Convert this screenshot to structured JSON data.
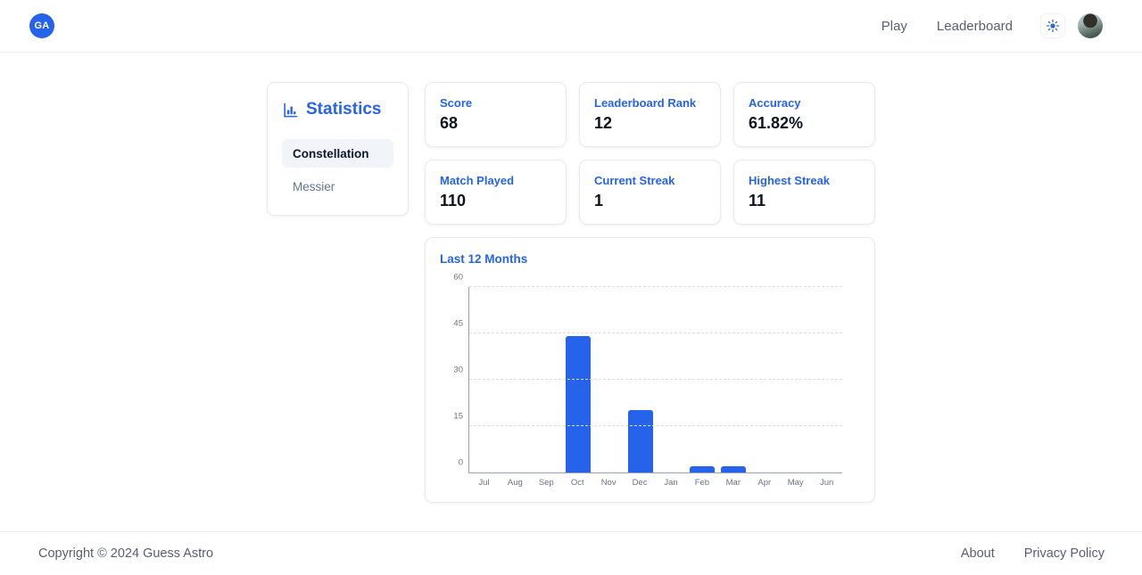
{
  "nav": {
    "logo_text": "GA",
    "links": [
      "Play",
      "Leaderboard"
    ],
    "theme_toggle": "sun-icon",
    "avatar": "user-photo"
  },
  "panel": {
    "title": "Statistics",
    "icon": "bar-chart-icon",
    "tabs": [
      {
        "label": "Constellation",
        "active": true
      },
      {
        "label": "Messier",
        "active": false
      }
    ]
  },
  "stats": [
    {
      "label": "Score",
      "value": "68"
    },
    {
      "label": "Leaderboard Rank",
      "value": "12"
    },
    {
      "label": "Accuracy",
      "value": "61.82%"
    },
    {
      "label": "Match Played",
      "value": "110"
    },
    {
      "label": "Current Streak",
      "value": "1"
    },
    {
      "label": "Highest Streak",
      "value": "11"
    }
  ],
  "chart_data": {
    "type": "bar",
    "title": "Last 12 Months",
    "categories": [
      "Jul",
      "Aug",
      "Sep",
      "Oct",
      "Nov",
      "Dec",
      "Jan",
      "Feb",
      "Mar",
      "Apr",
      "May",
      "Jun"
    ],
    "values": [
      0,
      0,
      0,
      44,
      0,
      20,
      0,
      2,
      2,
      0,
      0,
      0
    ],
    "xlabel": "",
    "ylabel": "",
    "ylim": [
      0,
      60
    ],
    "yticks": [
      0,
      15,
      30,
      45,
      60
    ],
    "grid": "dashed-horizontal",
    "legend": "none",
    "bar_color": "#2563eb"
  },
  "footer": {
    "copyright": "Copyright © 2024 Guess Astro",
    "links": [
      "About",
      "Privacy Policy"
    ]
  },
  "colors": {
    "accent": "#2563eb",
    "text_dark": "#0f172a",
    "text_muted": "#64748b",
    "nav_link": "#556070",
    "border": "#e6eaf0",
    "tab_active_bg": "#f1f5f9",
    "axis_line": "#9aa2ad",
    "grid_line": "#dcdfe4"
  }
}
